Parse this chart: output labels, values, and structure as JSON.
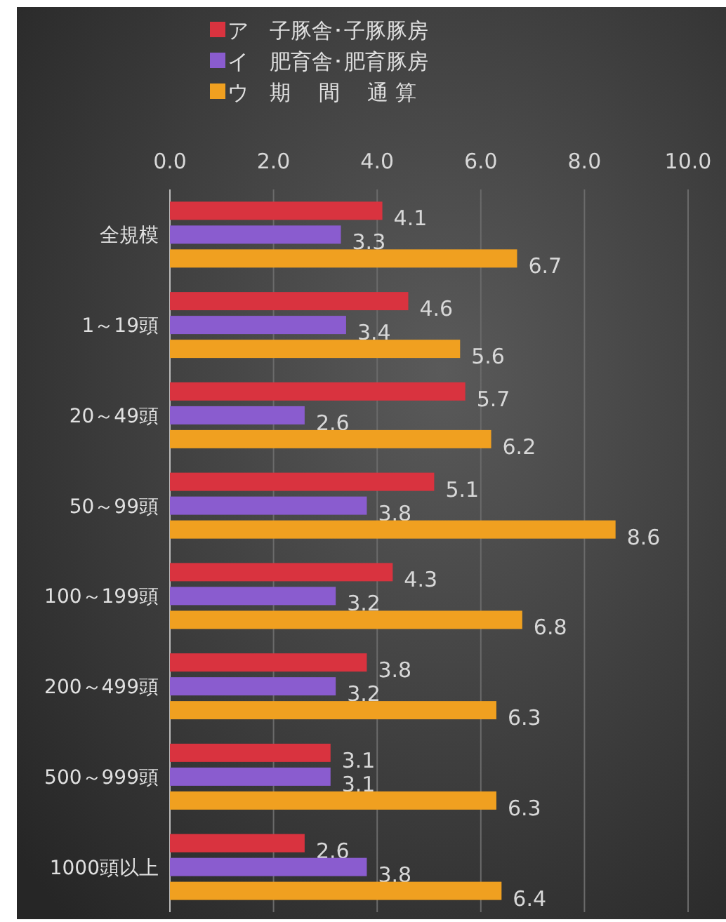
{
  "chart_data": {
    "type": "bar",
    "orientation": "horizontal",
    "categories": [
      "全規模",
      "1～19頭",
      "20～49頭",
      "50～99頭",
      "100～199頭",
      "200～499頭",
      "500～999頭",
      "1000頭以上"
    ],
    "series": [
      {
        "name": "ア　子豚舎･子豚豚房",
        "color": "#d9333f",
        "values": [
          4.1,
          4.6,
          5.7,
          5.1,
          4.3,
          3.8,
          3.1,
          2.6
        ]
      },
      {
        "name": "イ　肥育舎･肥育豚房",
        "color": "#8a5ccf",
        "values": [
          3.3,
          3.4,
          2.6,
          3.8,
          3.2,
          3.2,
          3.1,
          3.8
        ]
      },
      {
        "name": "ウ　期　 間　 通 算",
        "color": "#f0a020",
        "values": [
          6.7,
          5.6,
          6.2,
          8.6,
          6.8,
          6.3,
          6.3,
          6.4
        ]
      }
    ],
    "xlim": [
      0,
      10
    ],
    "xticks": [
      {
        "value": 0,
        "label": "0.0"
      },
      {
        "value": 2,
        "label": "2.0"
      },
      {
        "value": 4,
        "label": "4.0"
      },
      {
        "value": 6,
        "label": "6.0"
      },
      {
        "value": 8,
        "label": "8.0"
      },
      {
        "value": 10,
        "label": "10.0"
      }
    ],
    "grid": "x",
    "legend": "top",
    "data_labels": true
  }
}
